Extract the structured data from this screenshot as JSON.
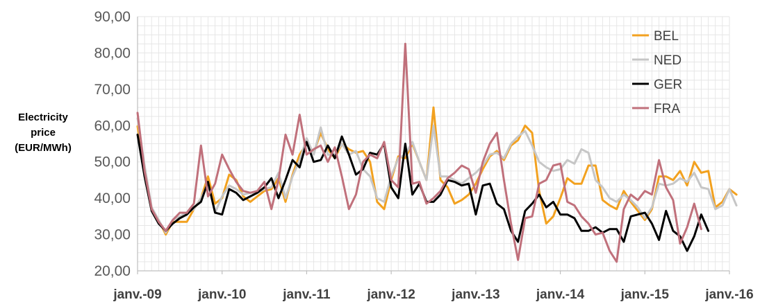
{
  "chart_data": {
    "type": "line",
    "title": "",
    "ylabel_lines": [
      "Electricity",
      "price",
      "(EUR/MWh)"
    ],
    "xlabel": "",
    "ylim": [
      20,
      90
    ],
    "y_ticks": [
      20,
      30,
      40,
      50,
      60,
      70,
      80,
      90
    ],
    "y_tick_labels": [
      "20,00",
      "30,00",
      "40,00",
      "50,00",
      "60,00",
      "70,00",
      "80,00",
      "90,00"
    ],
    "x_tick_labels": [
      "janv.-09",
      "janv.-10",
      "janv.-11",
      "janv.-12",
      "janv.-13",
      "janv.-14",
      "janv.-15",
      "janv.-16"
    ],
    "x_start": "2009-01",
    "x_end": "2016-01",
    "grid": true,
    "legend_position": "top-right",
    "series": [
      {
        "name": "BEL",
        "color": "#f2a11f",
        "start": "2009-01",
        "values": [
          59.8,
          47.5,
          37.0,
          34.0,
          30.0,
          33.5,
          33.5,
          33.5,
          37.0,
          40.0,
          46.0,
          38.5,
          40.0,
          46.5,
          45.0,
          40.5,
          39.0,
          40.5,
          42.0,
          42.5,
          45.5,
          39.0,
          46.5,
          52.0,
          55.0,
          52.5,
          58.0,
          53.5,
          51.0,
          55.0,
          53.5,
          52.5,
          53.0,
          50.0,
          39.0,
          37.0,
          45.0,
          51.5,
          51.0,
          55.0,
          50.0,
          45.0,
          65.0,
          45.0,
          43.0,
          38.5,
          39.5,
          41.0,
          44.0,
          48.0,
          51.5,
          53.0,
          50.5,
          54.5,
          56.0,
          60.0,
          58.0,
          42.0,
          33.0,
          35.0,
          40.0,
          45.5,
          44.0,
          44.0,
          49.0,
          49.0,
          39.5,
          38.0,
          37.0,
          42.0,
          39.0,
          36.5,
          34.0,
          37.0,
          46.0,
          46.0,
          45.0,
          47.5,
          43.5,
          50.0,
          47.0,
          47.5,
          37.5,
          39.0,
          42.5,
          41.0
        ]
      },
      {
        "name": "NED",
        "color": "#c6c6c6",
        "start": "2009-01",
        "values": [
          62.0,
          49.0,
          37.5,
          34.0,
          30.5,
          34.0,
          35.0,
          36.0,
          37.0,
          40.0,
          44.0,
          36.0,
          40.5,
          43.5,
          42.5,
          41.0,
          41.5,
          41.5,
          42.5,
          43.0,
          47.0,
          40.0,
          46.0,
          50.5,
          56.5,
          52.0,
          59.5,
          52.0,
          52.0,
          55.0,
          52.0,
          53.0,
          48.0,
          46.0,
          40.0,
          39.0,
          46.0,
          51.0,
          52.0,
          55.5,
          50.0,
          45.0,
          60.0,
          46.0,
          46.0,
          45.0,
          44.0,
          45.5,
          47.0,
          49.0,
          52.0,
          52.5,
          51.0,
          55.0,
          57.0,
          58.5,
          54.5,
          50.0,
          48.5,
          47.5,
          48.0,
          50.5,
          49.5,
          53.5,
          52.5,
          45.0,
          43.0,
          40.0,
          39.0,
          41.0,
          39.5,
          37.5,
          34.5,
          37.5,
          44.0,
          43.5,
          44.0,
          45.5,
          44.5,
          47.0,
          43.0,
          42.5,
          37.0,
          38.0,
          42.5,
          38.0
        ]
      },
      {
        "name": "GER",
        "color": "#000000",
        "start": "2009-01",
        "values": [
          57.5,
          46.0,
          36.5,
          33.0,
          31.0,
          33.0,
          34.5,
          35.5,
          37.5,
          39.0,
          44.5,
          36.0,
          35.5,
          42.5,
          41.5,
          39.5,
          40.5,
          41.5,
          43.0,
          45.5,
          40.0,
          45.0,
          50.5,
          48.5,
          55.5,
          50.0,
          50.5,
          54.5,
          51.0,
          57.0,
          52.0,
          46.5,
          48.0,
          52.5,
          52.0,
          55.0,
          43.0,
          40.0,
          55.0,
          41.0,
          44.0,
          39.0,
          39.0,
          41.0,
          45.0,
          44.5,
          43.5,
          44.0,
          35.5,
          43.5,
          44.0,
          38.5,
          37.0,
          31.0,
          28.0,
          36.5,
          38.5,
          41.0,
          37.5,
          39.0,
          35.5,
          35.5,
          34.5,
          31.0,
          31.0,
          32.0,
          30.5,
          31.5,
          31.5,
          28.0,
          35.0,
          35.5,
          36.0,
          33.0,
          28.5,
          36.5,
          31.0,
          29.5,
          25.5,
          29.5,
          35.5,
          31.0
        ]
      },
      {
        "name": "FRA",
        "color": "#c0707b",
        "start": "2009-01",
        "values": [
          63.5,
          47.5,
          37.0,
          33.5,
          31.0,
          34.0,
          36.0,
          36.0,
          38.5,
          54.5,
          40.5,
          44.0,
          52.0,
          48.0,
          44.5,
          42.0,
          41.5,
          42.0,
          44.5,
          37.0,
          45.0,
          57.5,
          52.0,
          63.0,
          52.0,
          53.5,
          54.5,
          50.0,
          54.0,
          46.0,
          37.0,
          41.0,
          50.0,
          52.0,
          51.0,
          55.5,
          45.0,
          43.0,
          82.5,
          44.0,
          44.5,
          38.5,
          40.0,
          42.0,
          45.5,
          47.0,
          49.0,
          48.0,
          41.5,
          50.0,
          55.0,
          58.0,
          45.0,
          33.0,
          23.0,
          34.5,
          35.0,
          44.0,
          45.0,
          49.0,
          49.5,
          39.0,
          38.0,
          35.0,
          33.0,
          30.0,
          30.5,
          25.5,
          22.5,
          37.0,
          41.0,
          39.5,
          42.0,
          41.0,
          50.5,
          43.0,
          39.5,
          27.5,
          32.0,
          38.5,
          31.5
        ]
      }
    ]
  }
}
